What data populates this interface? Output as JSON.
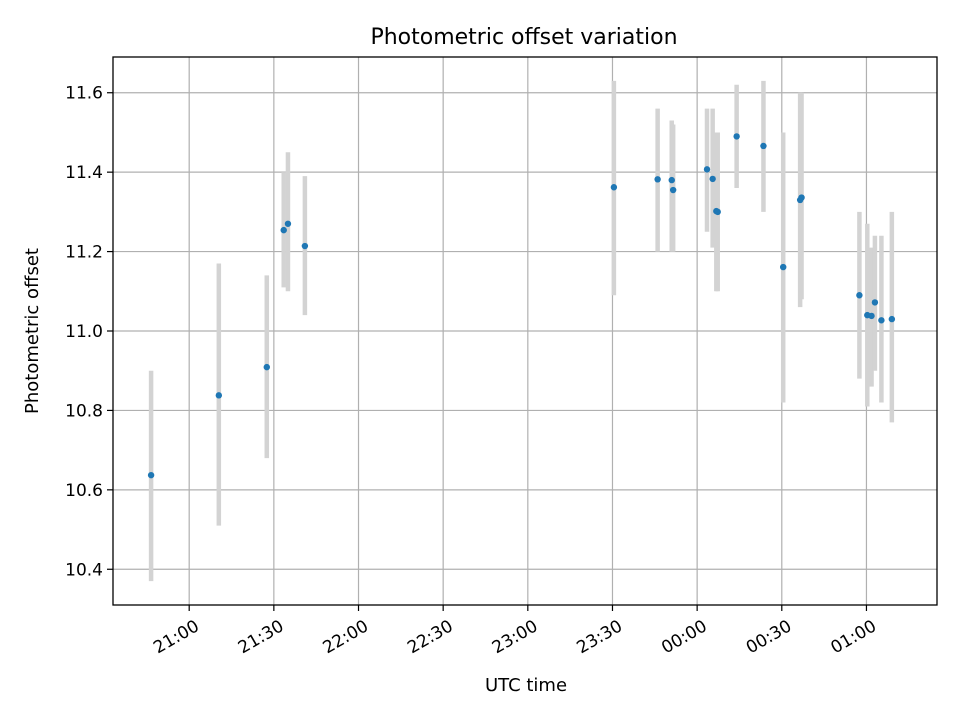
{
  "chart_data": {
    "type": "scatter",
    "title": "Photometric offset variation",
    "xlabel": "UTC time",
    "ylabel": "Photometric offset",
    "x_axis": {
      "kind": "time",
      "min_minutes": 1233,
      "max_minutes": 1525,
      "ticks": [
        {
          "minutes": 1260,
          "label": "21:00"
        },
        {
          "minutes": 1290,
          "label": "21:30"
        },
        {
          "minutes": 1320,
          "label": "22:00"
        },
        {
          "minutes": 1350,
          "label": "22:30"
        },
        {
          "minutes": 1380,
          "label": "23:00"
        },
        {
          "minutes": 1410,
          "label": "23:30"
        },
        {
          "minutes": 1440,
          "label": "00:00"
        },
        {
          "minutes": 1470,
          "label": "00:30"
        },
        {
          "minutes": 1500,
          "label": "01:00"
        }
      ]
    },
    "y_axis": {
      "min": 10.31,
      "max": 11.69,
      "ticks": [
        {
          "value": 10.4,
          "label": "10.4"
        },
        {
          "value": 10.6,
          "label": "10.6"
        },
        {
          "value": 10.8,
          "label": "10.8"
        },
        {
          "value": 11.0,
          "label": "11.0"
        },
        {
          "value": 11.2,
          "label": "11.2"
        },
        {
          "value": 11.4,
          "label": "11.4"
        },
        {
          "value": 11.6,
          "label": "11.6"
        }
      ]
    },
    "grid": true,
    "series": [
      {
        "marker_color": "#1f77b4",
        "errorbar_color": "#d3d3d3",
        "points": [
          {
            "t": 1246.5,
            "y": 10.637,
            "lo": 10.37,
            "hi": 10.9
          },
          {
            "t": 1270.5,
            "y": 10.838,
            "lo": 10.51,
            "hi": 11.17
          },
          {
            "t": 1287.5,
            "y": 10.909,
            "lo": 10.68,
            "hi": 11.14
          },
          {
            "t": 1293.5,
            "y": 11.254,
            "lo": 11.11,
            "hi": 11.4
          },
          {
            "t": 1295.0,
            "y": 11.27,
            "lo": 11.1,
            "hi": 11.45
          },
          {
            "t": 1301.0,
            "y": 11.214,
            "lo": 11.04,
            "hi": 11.39
          },
          {
            "t": 1410.5,
            "y": 11.362,
            "lo": 11.09,
            "hi": 11.63
          },
          {
            "t": 1426.0,
            "y": 11.382,
            "lo": 11.2,
            "hi": 11.56
          },
          {
            "t": 1431.0,
            "y": 11.38,
            "lo": 11.2,
            "hi": 11.53
          },
          {
            "t": 1431.5,
            "y": 11.355,
            "lo": 11.2,
            "hi": 11.52
          },
          {
            "t": 1443.5,
            "y": 11.407,
            "lo": 11.25,
            "hi": 11.56
          },
          {
            "t": 1445.5,
            "y": 11.383,
            "lo": 11.21,
            "hi": 11.56
          },
          {
            "t": 1446.8,
            "y": 11.302,
            "lo": 11.1,
            "hi": 11.5
          },
          {
            "t": 1447.3,
            "y": 11.3,
            "lo": 11.1,
            "hi": 11.5
          },
          {
            "t": 1454.0,
            "y": 11.49,
            "lo": 11.36,
            "hi": 11.62
          },
          {
            "t": 1463.5,
            "y": 11.466,
            "lo": 11.3,
            "hi": 11.63
          },
          {
            "t": 1470.5,
            "y": 11.161,
            "lo": 10.82,
            "hi": 11.5
          },
          {
            "t": 1476.5,
            "y": 11.33,
            "lo": 11.06,
            "hi": 11.6
          },
          {
            "t": 1477.0,
            "y": 11.336,
            "lo": 11.08,
            "hi": 11.6
          },
          {
            "t": 1497.5,
            "y": 11.09,
            "lo": 10.88,
            "hi": 11.3
          },
          {
            "t": 1500.3,
            "y": 11.04,
            "lo": 10.81,
            "hi": 11.27
          },
          {
            "t": 1501.8,
            "y": 11.038,
            "lo": 10.86,
            "hi": 11.21
          },
          {
            "t": 1503.0,
            "y": 11.072,
            "lo": 10.9,
            "hi": 11.24
          },
          {
            "t": 1505.3,
            "y": 11.027,
            "lo": 10.82,
            "hi": 11.24
          },
          {
            "t": 1509.0,
            "y": 11.03,
            "lo": 10.77,
            "hi": 11.3
          }
        ]
      }
    ]
  }
}
